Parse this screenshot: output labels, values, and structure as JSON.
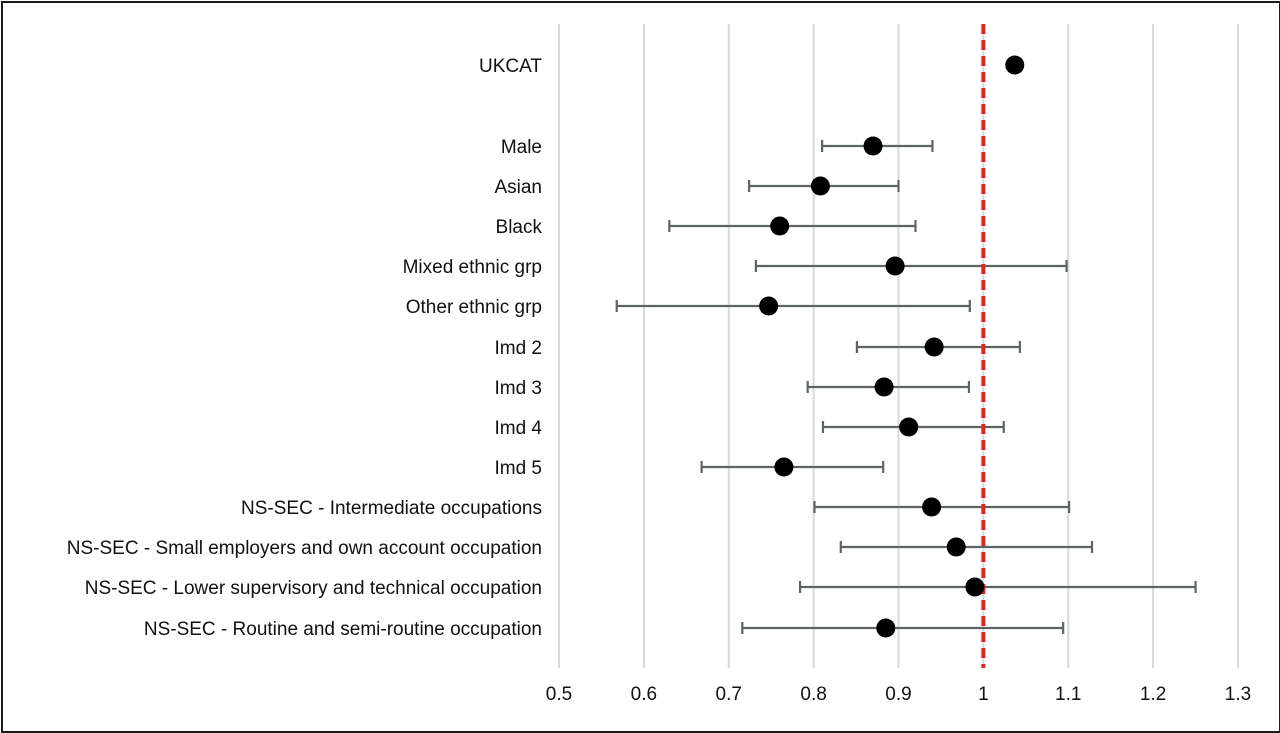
{
  "chart_data": {
    "type": "scatter",
    "subtype": "forest-plot",
    "title": "",
    "xlabel": "",
    "ylabel": "",
    "xlim": [
      0.5,
      1.3
    ],
    "xticks": [
      0.5,
      0.6,
      0.7,
      0.8,
      0.9,
      1,
      1.1,
      1.2,
      1.3
    ],
    "xtick_labels": [
      "0.5",
      "0.6",
      "0.7",
      "0.8",
      "0.9",
      "1",
      "1.1",
      "1.2",
      "1.3"
    ],
    "grid": "vertical",
    "reference_line": {
      "x": 1,
      "style": "dashed",
      "color": "#e3241b"
    },
    "point_color": "#000000",
    "ci_color": "#5e6466",
    "grid_color": "#d3dcd8",
    "rows": [
      {
        "label": "UKCAT",
        "estimate": 1.037,
        "ci": null
      },
      {
        "label": "Male",
        "estimate": 0.87,
        "ci": [
          0.81,
          0.94
        ]
      },
      {
        "label": "Asian",
        "estimate": 0.808,
        "ci": [
          0.724,
          0.9
        ]
      },
      {
        "label": "Black",
        "estimate": 0.76,
        "ci": [
          0.63,
          0.92
        ]
      },
      {
        "label": "Mixed ethnic grp",
        "estimate": 0.896,
        "ci": [
          0.732,
          1.098
        ]
      },
      {
        "label": "Other ethnic grp",
        "estimate": 0.747,
        "ci": [
          0.568,
          0.984
        ]
      },
      {
        "label": "Imd 2",
        "estimate": 0.942,
        "ci": [
          0.851,
          1.043
        ]
      },
      {
        "label": "Imd 3",
        "estimate": 0.883,
        "ci": [
          0.793,
          0.983
        ]
      },
      {
        "label": "Imd 4",
        "estimate": 0.912,
        "ci": [
          0.811,
          1.024
        ]
      },
      {
        "label": "Imd 5",
        "estimate": 0.765,
        "ci": [
          0.668,
          0.882
        ]
      },
      {
        "label": "NS-SEC - Intermediate occupations",
        "estimate": 0.939,
        "ci": [
          0.801,
          1.101
        ]
      },
      {
        "label": "NS-SEC - Small employers and own account occupation",
        "estimate": 0.968,
        "ci": [
          0.832,
          1.128
        ]
      },
      {
        "label": "NS-SEC - Lower supervisory and technical occupation",
        "estimate": 0.99,
        "ci": [
          0.784,
          1.25
        ]
      },
      {
        "label": "NS-SEC - Routine and semi-routine occupation",
        "estimate": 0.885,
        "ci": [
          0.716,
          1.094
        ]
      }
    ]
  }
}
